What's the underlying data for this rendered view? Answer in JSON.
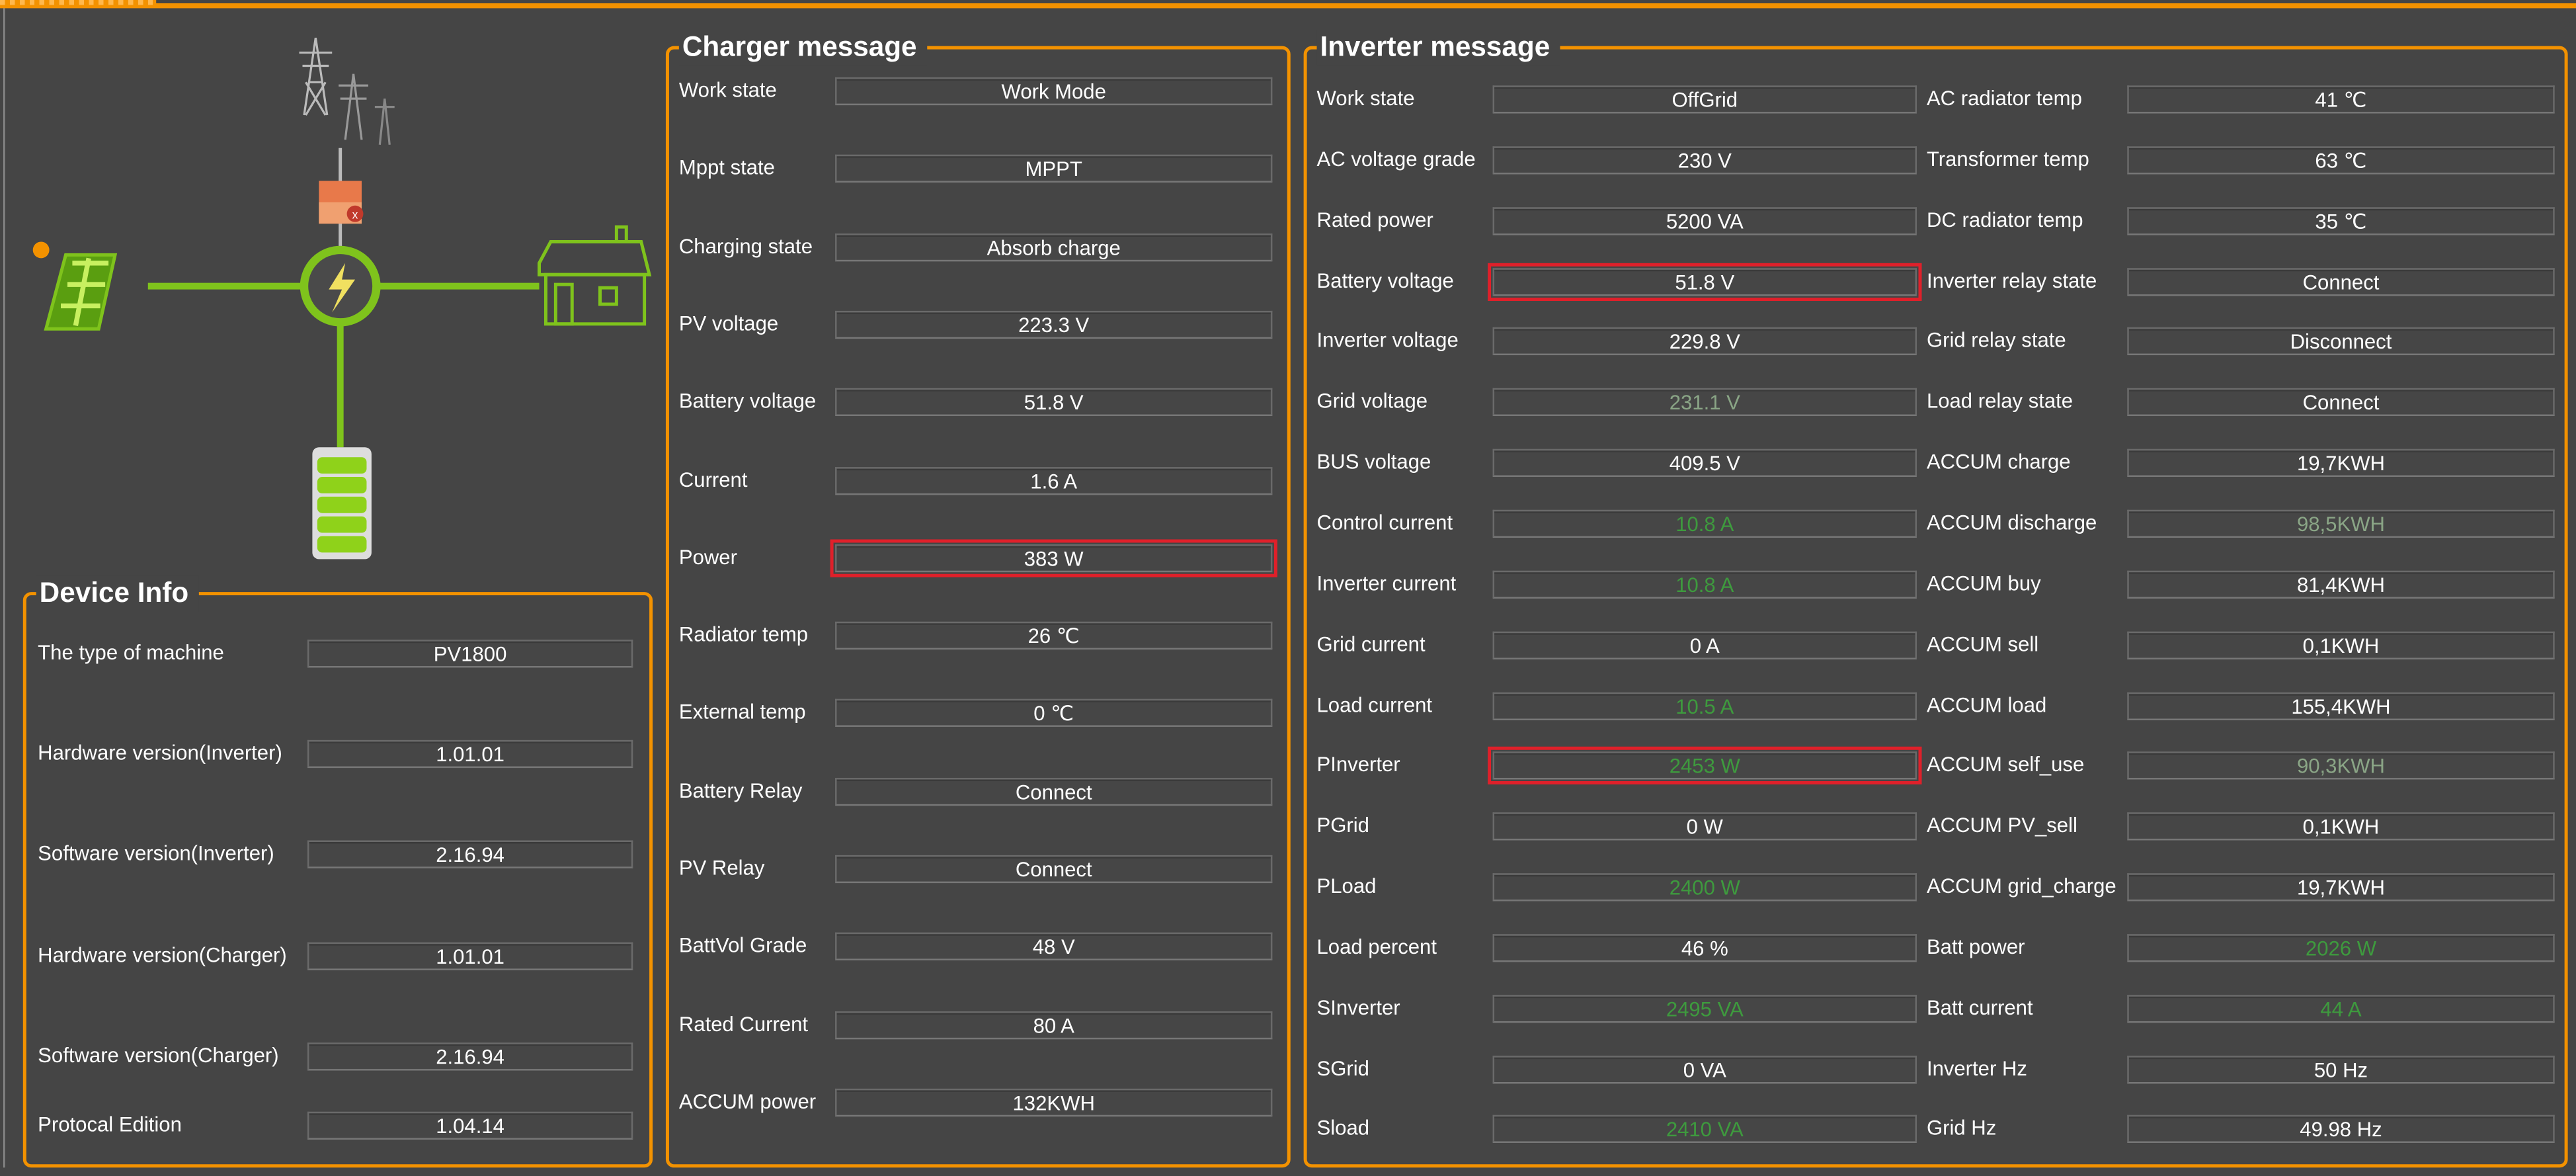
{
  "colors": {
    "accent": "#f39200",
    "highlight": "#e0202a",
    "green_value": "#3e9a3e",
    "muted_green_value": "#8aa586",
    "background": "#454545"
  },
  "diagram": {
    "nodes": [
      "grid-tower-icon",
      "grid-switch-icon",
      "solar-panel-icon",
      "sun-icon",
      "inverter-hub-icon",
      "house-icon",
      "battery-icon"
    ],
    "grid_switch_state": "disconnected",
    "battery_level": 1.0
  },
  "device_info": {
    "title": "Device Info",
    "rows": [
      {
        "label": "The type of machine",
        "value": "PV1800"
      },
      {
        "label": "Hardware version(Inverter)",
        "value": "1.01.01"
      },
      {
        "label": "Software version(Inverter)",
        "value": "2.16.94"
      },
      {
        "label": "Hardware version(Charger)",
        "value": "1.01.01"
      },
      {
        "label": "Software version(Charger)",
        "value": "2.16.94"
      },
      {
        "label": "Protocal Edition",
        "value": "1.04.14"
      }
    ]
  },
  "charger": {
    "title": "Charger message",
    "rows": [
      {
        "label": "Work state",
        "value": "Work Mode"
      },
      {
        "label": "Mppt state",
        "value": "MPPT"
      },
      {
        "label": "Charging state",
        "value": "Absorb charge"
      },
      {
        "label": "PV voltage",
        "value": "223.3 V"
      },
      {
        "label": "Battery voltage",
        "value": "51.8 V"
      },
      {
        "label": "Current",
        "value": "1.6 A"
      },
      {
        "label": "Power",
        "value": "383 W",
        "highlighted": true
      },
      {
        "label": "Radiator temp",
        "value": "26 ℃"
      },
      {
        "label": "External temp",
        "value": "0 ℃"
      },
      {
        "label": "Battery Relay",
        "value": "Connect"
      },
      {
        "label": "PV Relay",
        "value": "Connect"
      },
      {
        "label": "BattVol Grade",
        "value": "48 V"
      },
      {
        "label": "Rated Current",
        "value": "80 A"
      },
      {
        "label": "ACCUM power",
        "value": "132KWH"
      }
    ]
  },
  "inverter": {
    "title": "Inverter message",
    "left": [
      {
        "label": "Work state",
        "value": "OffGrid"
      },
      {
        "label": "AC voltage grade",
        "value": "230 V"
      },
      {
        "label": "Rated power",
        "value": "5200 VA"
      },
      {
        "label": "Battery voltage",
        "value": "51.8 V",
        "highlighted": true
      },
      {
        "label": "Inverter voltage",
        "value": "229.8 V"
      },
      {
        "label": "Grid voltage",
        "value": "231.1 V",
        "tone": "gg"
      },
      {
        "label": "BUS voltage",
        "value": "409.5 V"
      },
      {
        "label": "Control current",
        "value": "10.8 A",
        "tone": "g"
      },
      {
        "label": "Inverter current",
        "value": "10.8 A",
        "tone": "g"
      },
      {
        "label": "Grid current",
        "value": "0 A"
      },
      {
        "label": "Load current",
        "value": "10.5 A",
        "tone": "g"
      },
      {
        "label": "PInverter",
        "value": "2453 W",
        "tone": "g",
        "highlighted": true
      },
      {
        "label": "PGrid",
        "value": "0 W"
      },
      {
        "label": "PLoad",
        "value": "2400 W",
        "tone": "g"
      },
      {
        "label": "Load percent",
        "value": "46 %"
      },
      {
        "label": "SInverter",
        "value": "2495 VA",
        "tone": "g"
      },
      {
        "label": "SGrid",
        "value": "0 VA"
      },
      {
        "label": "Sload",
        "value": "2410 VA",
        "tone": "g"
      }
    ],
    "right": [
      {
        "label": "AC radiator temp",
        "value": "41 ℃"
      },
      {
        "label": "Transformer temp",
        "value": "63 ℃"
      },
      {
        "label": "DC radiator temp",
        "value": "35 ℃"
      },
      {
        "label": "Inverter relay state",
        "value": "Connect"
      },
      {
        "label": "Grid relay state",
        "value": "Disconnect"
      },
      {
        "label": "Load relay state",
        "value": "Connect"
      },
      {
        "label": "ACCUM charge",
        "value": "19,7KWH"
      },
      {
        "label": "ACCUM discharge",
        "value": "98,5KWH",
        "tone": "gg"
      },
      {
        "label": "ACCUM buy",
        "value": "81,4KWH"
      },
      {
        "label": "ACCUM sell",
        "value": "0,1KWH"
      },
      {
        "label": "ACCUM load",
        "value": "155,4KWH"
      },
      {
        "label": "ACCUM self_use",
        "value": "90,3KWH",
        "tone": "gg"
      },
      {
        "label": "ACCUM PV_sell",
        "value": "0,1KWH"
      },
      {
        "label": "ACCUM grid_charge",
        "value": "19,7KWH"
      },
      {
        "label": "Batt power",
        "value": "2026 W",
        "tone": "g"
      },
      {
        "label": "Batt current",
        "value": "44 A",
        "tone": "g"
      },
      {
        "label": "Inverter Hz",
        "value": "50 Hz"
      },
      {
        "label": "Grid Hz",
        "value": "49.98 Hz"
      }
    ]
  }
}
